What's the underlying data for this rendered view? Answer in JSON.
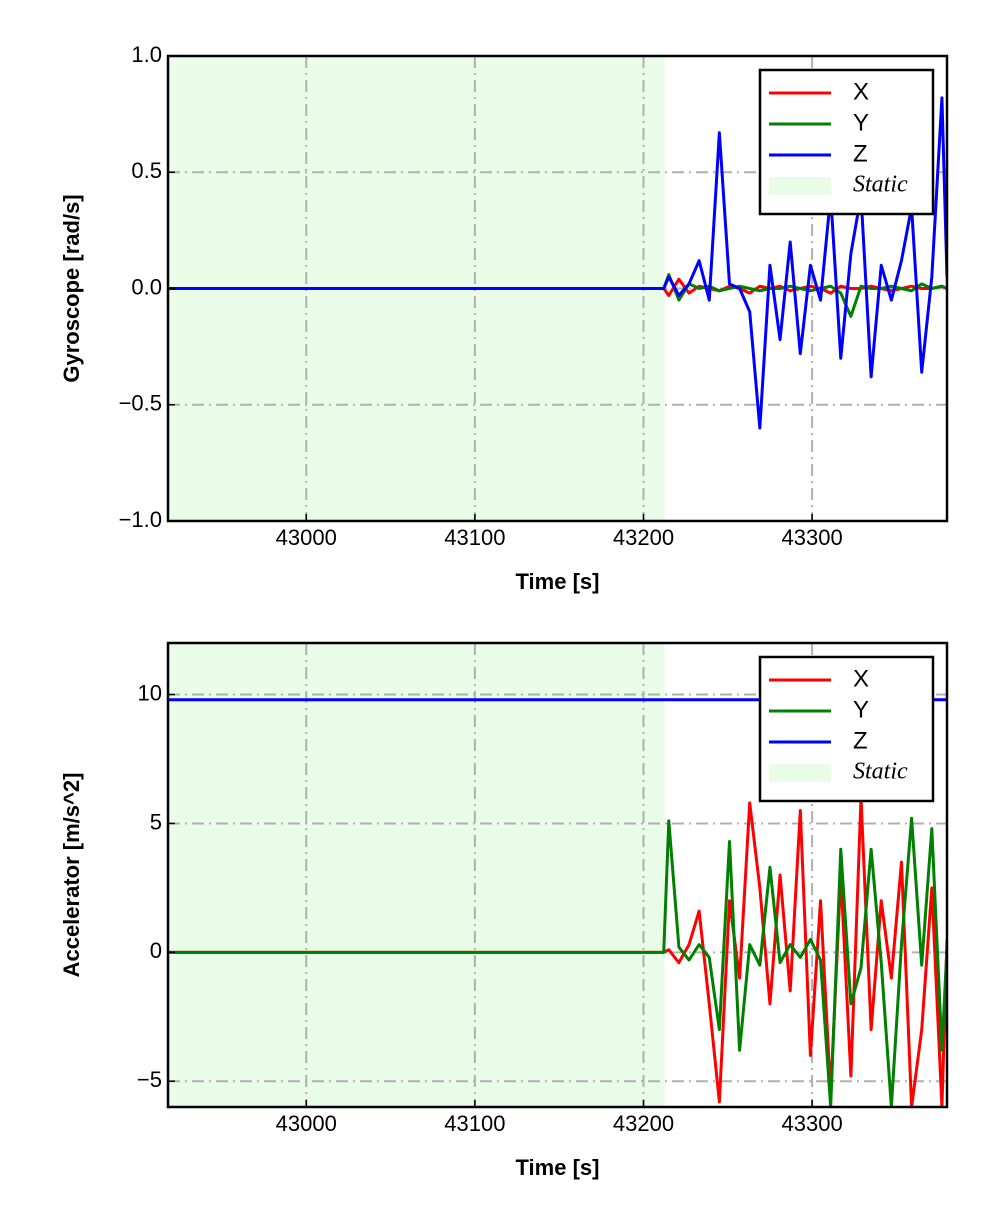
{
  "chart_data": [
    {
      "type": "line",
      "xlabel": "Time [s]",
      "ylabel": "Gyroscope [rad/s]",
      "x": [
        42918,
        43000,
        43100,
        43212,
        43215,
        43221,
        43227,
        43233,
        43239,
        43245,
        43251,
        43257,
        43263,
        43269,
        43275,
        43281,
        43287,
        43293,
        43299,
        43305,
        43311,
        43317,
        43323,
        43329,
        43335,
        43341,
        43347,
        43353,
        43359,
        43365,
        43371,
        43377,
        43380
      ],
      "series": [
        {
          "name": "X",
          "color": "#ff0000",
          "values": [
            0,
            0,
            0,
            0,
            -0.03,
            0.04,
            -0.02,
            0.01,
            0,
            -0.01,
            0.01,
            0,
            -0.02,
            0.01,
            0,
            0.01,
            -0.01,
            0,
            0.01,
            0,
            -0.02,
            0.01,
            0,
            0,
            0.01,
            0,
            -0.01,
            0,
            0.01,
            0,
            0,
            0.01,
            0
          ]
        },
        {
          "name": "Y",
          "color": "#008000",
          "values": [
            0,
            0,
            0,
            0,
            0.06,
            -0.05,
            0.02,
            0,
            0.01,
            -0.01,
            0,
            0.01,
            0,
            -0.01,
            0,
            0,
            0.01,
            0,
            -0.01,
            0,
            0.01,
            -0.02,
            -0.12,
            0.01,
            0,
            0,
            0.01,
            0,
            -0.01,
            0.02,
            0,
            0.01,
            0
          ]
        },
        {
          "name": "Z",
          "color": "#0000ff",
          "values": [
            0,
            0,
            0,
            0,
            0.05,
            -0.03,
            0.02,
            0.12,
            -0.05,
            0.67,
            0.02,
            0,
            -0.1,
            -0.6,
            0.1,
            -0.22,
            0.2,
            -0.28,
            0.1,
            -0.05,
            0.4,
            -0.3,
            0.15,
            0.4,
            -0.38,
            0.1,
            -0.05,
            0.12,
            0.35,
            -0.36,
            0.05,
            0.82,
            0.05
          ]
        }
      ],
      "static": {
        "name": "Static",
        "range": [
          42918,
          43212.5
        ],
        "color": "#e8fce8"
      },
      "xlim": [
        42918,
        43380
      ],
      "xticks": [
        43000,
        43100,
        43200,
        43300
      ],
      "ylim": [
        -1,
        1
      ],
      "yticks": [
        {
          "value": -1,
          "label": "−1.0"
        },
        {
          "value": -0.5,
          "label": "−0.5"
        },
        {
          "value": 0,
          "label": "0.0"
        },
        {
          "value": 0.5,
          "label": "0.5"
        },
        {
          "value": 1,
          "label": "1.0"
        }
      ],
      "grid": true,
      "legend": "upper right"
    },
    {
      "type": "line",
      "xlabel": "Time [s]",
      "ylabel": "Accelerator [m/s^2]",
      "x": [
        42918,
        43000,
        43100,
        43212,
        43215,
        43221,
        43227,
        43233,
        43239,
        43245,
        43251,
        43257,
        43263,
        43269,
        43275,
        43281,
        43287,
        43293,
        43299,
        43305,
        43311,
        43317,
        43323,
        43329,
        43335,
        43341,
        43347,
        43353,
        43359,
        43365,
        43371,
        43377,
        43380
      ],
      "series": [
        {
          "name": "X",
          "color": "#ff0000",
          "values": [
            0,
            0,
            0,
            0,
            0.1,
            -0.4,
            0.3,
            1.6,
            -2,
            -5.8,
            2,
            -1,
            5.8,
            2.5,
            -2,
            3,
            -1.5,
            5.5,
            -4,
            2,
            -5.5,
            3,
            -4.8,
            6,
            -3,
            2,
            -1,
            3.5,
            -6,
            -3,
            2.5,
            -6,
            0.5
          ]
        },
        {
          "name": "Y",
          "color": "#008000",
          "values": [
            0,
            0,
            0,
            0,
            5.1,
            0.2,
            -0.3,
            0.3,
            -0.2,
            -3,
            4.3,
            -3.8,
            0.3,
            -0.5,
            3.3,
            -0.4,
            0.3,
            -0.2,
            0.5,
            -0.3,
            -6,
            4,
            -2,
            -0.6,
            4,
            -0.4,
            -6,
            0.3,
            5.2,
            -0.5,
            4.8,
            -3.8,
            0.2
          ]
        },
        {
          "name": "Z",
          "color": "#0000ff",
          "values": [
            9.8,
            9.8,
            9.8,
            9.8,
            9.8,
            9.8,
            9.8,
            9.8,
            9.8,
            9.8,
            9.8,
            9.8,
            9.8,
            9.8,
            9.8,
            9.8,
            9.8,
            9.8,
            9.8,
            9.8,
            9.8,
            9.8,
            9.8,
            9.8,
            9.8,
            9.8,
            9.8,
            9.8,
            9.8,
            9.8,
            9.8,
            9.8,
            9.8
          ]
        }
      ],
      "static": {
        "name": "Static",
        "range": [
          42918,
          43212.5
        ],
        "color": "#e8fce8"
      },
      "xlim": [
        42918,
        43380
      ],
      "xticks": [
        43000,
        43100,
        43200,
        43300
      ],
      "ylim": [
        -6,
        12
      ],
      "yticks": [
        {
          "value": -5,
          "label": "−5"
        },
        0,
        5,
        10
      ],
      "grid": true,
      "legend": "upper right"
    }
  ]
}
